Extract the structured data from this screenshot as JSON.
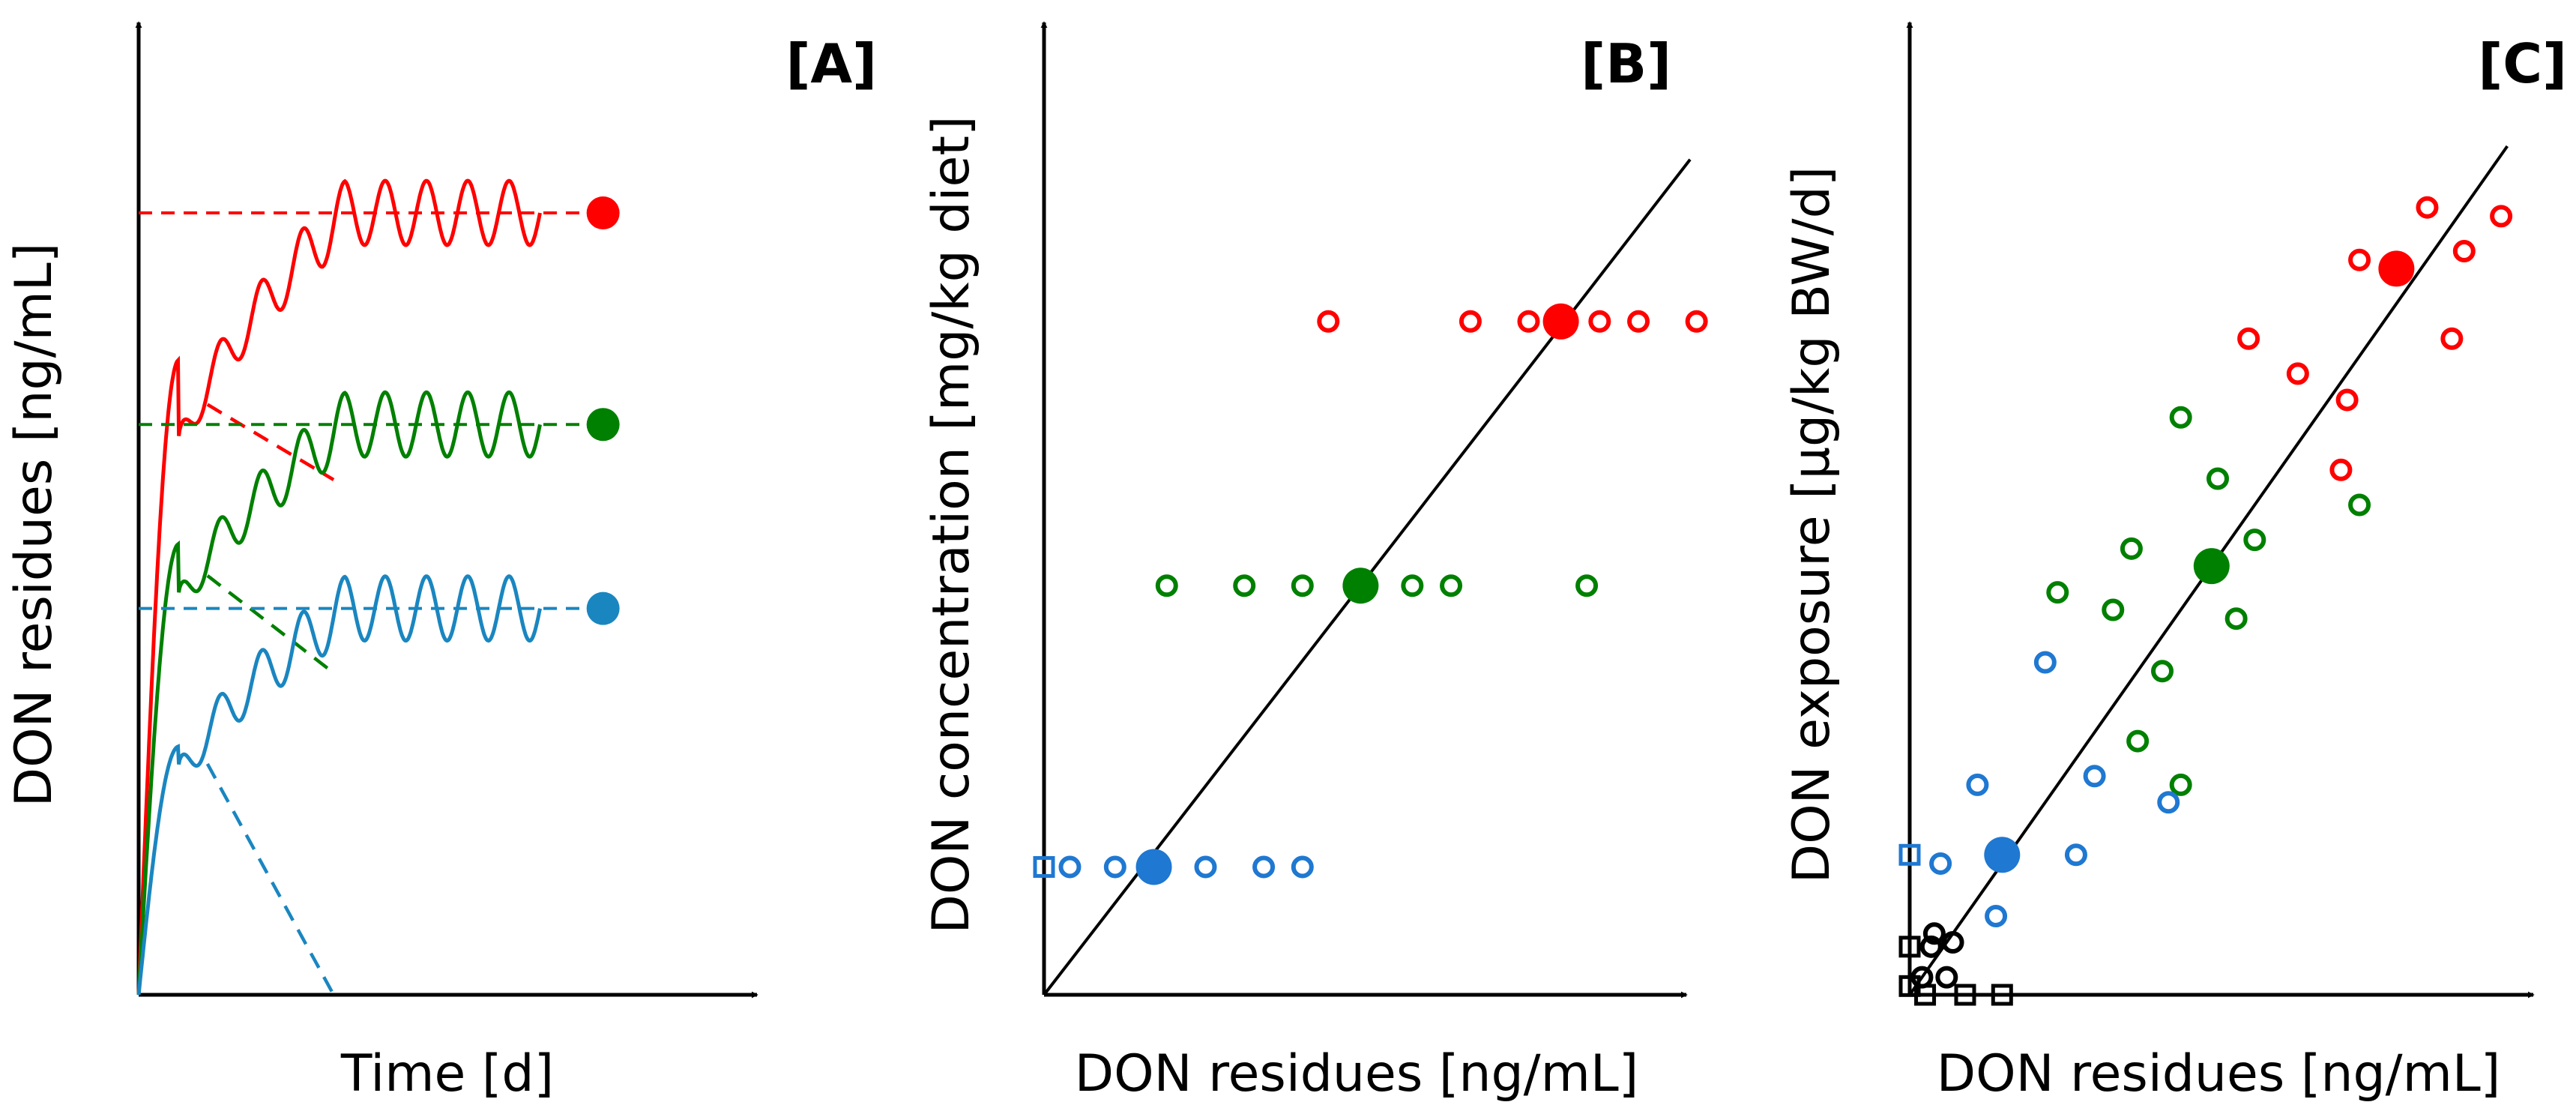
{
  "colors": {
    "red": "#ff0000",
    "green": "#008000",
    "blue": "#1f78d1",
    "trace_blue": "#1a86c0",
    "black": "#000000"
  },
  "chart_data": [
    {
      "panel": "A",
      "type": "line",
      "tag": "[A]",
      "xlabel": "Time [d]",
      "ylabel": "DON residues [ng/mL]",
      "grid": false,
      "xlim": [
        0,
        10
      ],
      "ylim": [
        0,
        10
      ],
      "series": [
        {
          "name": "red",
          "color_key": "red",
          "steady_state": 8.5,
          "first_peak": 6.9,
          "wave_amp": 0.35,
          "washout_end": 5.6
        },
        {
          "name": "green",
          "color_key": "green",
          "steady_state": 6.2,
          "first_peak": 4.9,
          "wave_amp": 0.35,
          "washout_end": 3.5
        },
        {
          "name": "blue",
          "color_key": "trace_blue",
          "steady_state": 4.2,
          "first_peak": 2.7,
          "wave_amp": 0.35,
          "washout_end": 0.0
        }
      ]
    },
    {
      "panel": "B",
      "type": "scatter",
      "tag": "[B]",
      "xlabel": "DON residues [ng/mL]",
      "ylabel": "DON concentration [mg/kg diet]",
      "grid": false,
      "xlim": [
        0,
        10
      ],
      "ylim": [
        0,
        10
      ],
      "fit_line": {
        "from": [
          0,
          0
        ],
        "to": [
          10,
          9.8
        ]
      },
      "series": [
        {
          "name": "red",
          "color_key": "red",
          "mean": [
            8.0,
            7.9
          ],
          "points": [
            [
              4.4,
              7.9
            ],
            [
              6.6,
              7.9
            ],
            [
              7.5,
              7.9
            ],
            [
              8.6,
              7.9
            ],
            [
              9.2,
              7.9
            ],
            [
              10.1,
              7.9
            ]
          ]
        },
        {
          "name": "green",
          "color_key": "green",
          "mean": [
            4.9,
            4.8
          ],
          "points": [
            [
              1.9,
              4.8
            ],
            [
              3.1,
              4.8
            ],
            [
              4.0,
              4.8
            ],
            [
              5.7,
              4.8
            ],
            [
              6.3,
              4.8
            ],
            [
              8.4,
              4.8
            ]
          ]
        },
        {
          "name": "blue",
          "color_key": "blue",
          "mean": [
            1.7,
            1.5
          ],
          "points": [
            [
              0.4,
              1.5
            ],
            [
              1.1,
              1.5
            ],
            [
              2.5,
              1.5
            ],
            [
              3.4,
              1.5
            ],
            [
              4.0,
              1.5
            ]
          ],
          "squares": [
            [
              0.0,
              1.5
            ]
          ]
        }
      ]
    },
    {
      "panel": "C",
      "type": "scatter",
      "tag": "[C]",
      "xlabel": "DON residues [ng/mL]",
      "ylabel": "DON exposure [µg/kg BW/d]",
      "grid": false,
      "xlim": [
        0,
        10
      ],
      "ylim": [
        0,
        10
      ],
      "fit_line": {
        "from": [
          0,
          0
        ],
        "to": [
          9.7,
          9.7
        ]
      },
      "series": [
        {
          "name": "red",
          "color_key": "red",
          "mean": [
            7.9,
            8.3
          ],
          "points": [
            [
              7.3,
              8.4
            ],
            [
              5.5,
              7.5
            ],
            [
              6.3,
              7.1
            ],
            [
              8.4,
              9.0
            ],
            [
              9.0,
              8.5
            ],
            [
              9.6,
              8.9
            ],
            [
              8.8,
              7.5
            ],
            [
              7.1,
              6.8
            ],
            [
              7.0,
              6.0
            ]
          ]
        },
        {
          "name": "green",
          "color_key": "green",
          "mean": [
            4.9,
            4.9
          ],
          "points": [
            [
              4.4,
              6.6
            ],
            [
              5.0,
              5.9
            ],
            [
              3.6,
              5.1
            ],
            [
              2.4,
              4.6
            ],
            [
              3.3,
              4.4
            ],
            [
              5.6,
              5.2
            ],
            [
              5.3,
              4.3
            ],
            [
              4.1,
              3.7
            ],
            [
              3.7,
              2.9
            ],
            [
              4.4,
              2.4
            ],
            [
              7.3,
              5.6
            ]
          ]
        },
        {
          "name": "blue",
          "color_key": "blue",
          "mean": [
            1.5,
            1.6
          ],
          "points": [
            [
              2.2,
              3.8
            ],
            [
              1.1,
              2.4
            ],
            [
              3.0,
              2.5
            ],
            [
              4.2,
              2.2
            ],
            [
              0.5,
              1.5
            ],
            [
              2.7,
              1.6
            ],
            [
              1.4,
              0.9
            ]
          ],
          "squares": [
            [
              0.0,
              1.6
            ]
          ]
        },
        {
          "name": "low",
          "color_key": "black",
          "points": [
            [
              0.4,
              0.7
            ],
            [
              0.7,
              0.6
            ],
            [
              0.2,
              0.2
            ],
            [
              0.6,
              0.2
            ],
            [
              0.35,
              0.55
            ]
          ],
          "squares": [
            [
              0.0,
              0.55
            ],
            [
              0.0,
              0.1
            ],
            [
              0.25,
              0.0
            ],
            [
              0.9,
              0.0
            ],
            [
              1.5,
              0.0
            ]
          ]
        }
      ]
    }
  ]
}
